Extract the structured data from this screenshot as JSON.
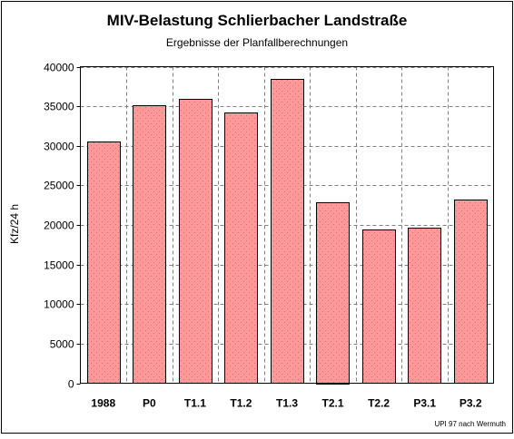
{
  "chart_data": {
    "type": "bar",
    "title": "MIV-Belastung Schlierbacher Landstraße",
    "subtitle": "Ergebnisse der Planfallberechnungen",
    "xlabel": "",
    "ylabel": "Kfz/24 h",
    "ylim": [
      0,
      40000
    ],
    "ytick_step": 5000,
    "grid": true,
    "legend": "none",
    "categories": [
      "1988",
      "P0",
      "T1.1",
      "T1.2",
      "T1.3",
      "T2.1",
      "T2.2",
      "P3.1",
      "P3.2"
    ],
    "values": [
      30500,
      35100,
      35900,
      34200,
      38400,
      22900,
      19400,
      19600,
      23200
    ],
    "source_note": "UPI 97 nach Wermuth",
    "colors": {
      "bar_fill": "#ff9999",
      "bar_stroke": "#000000",
      "grid": "#808080",
      "background": "#ffffff"
    }
  }
}
